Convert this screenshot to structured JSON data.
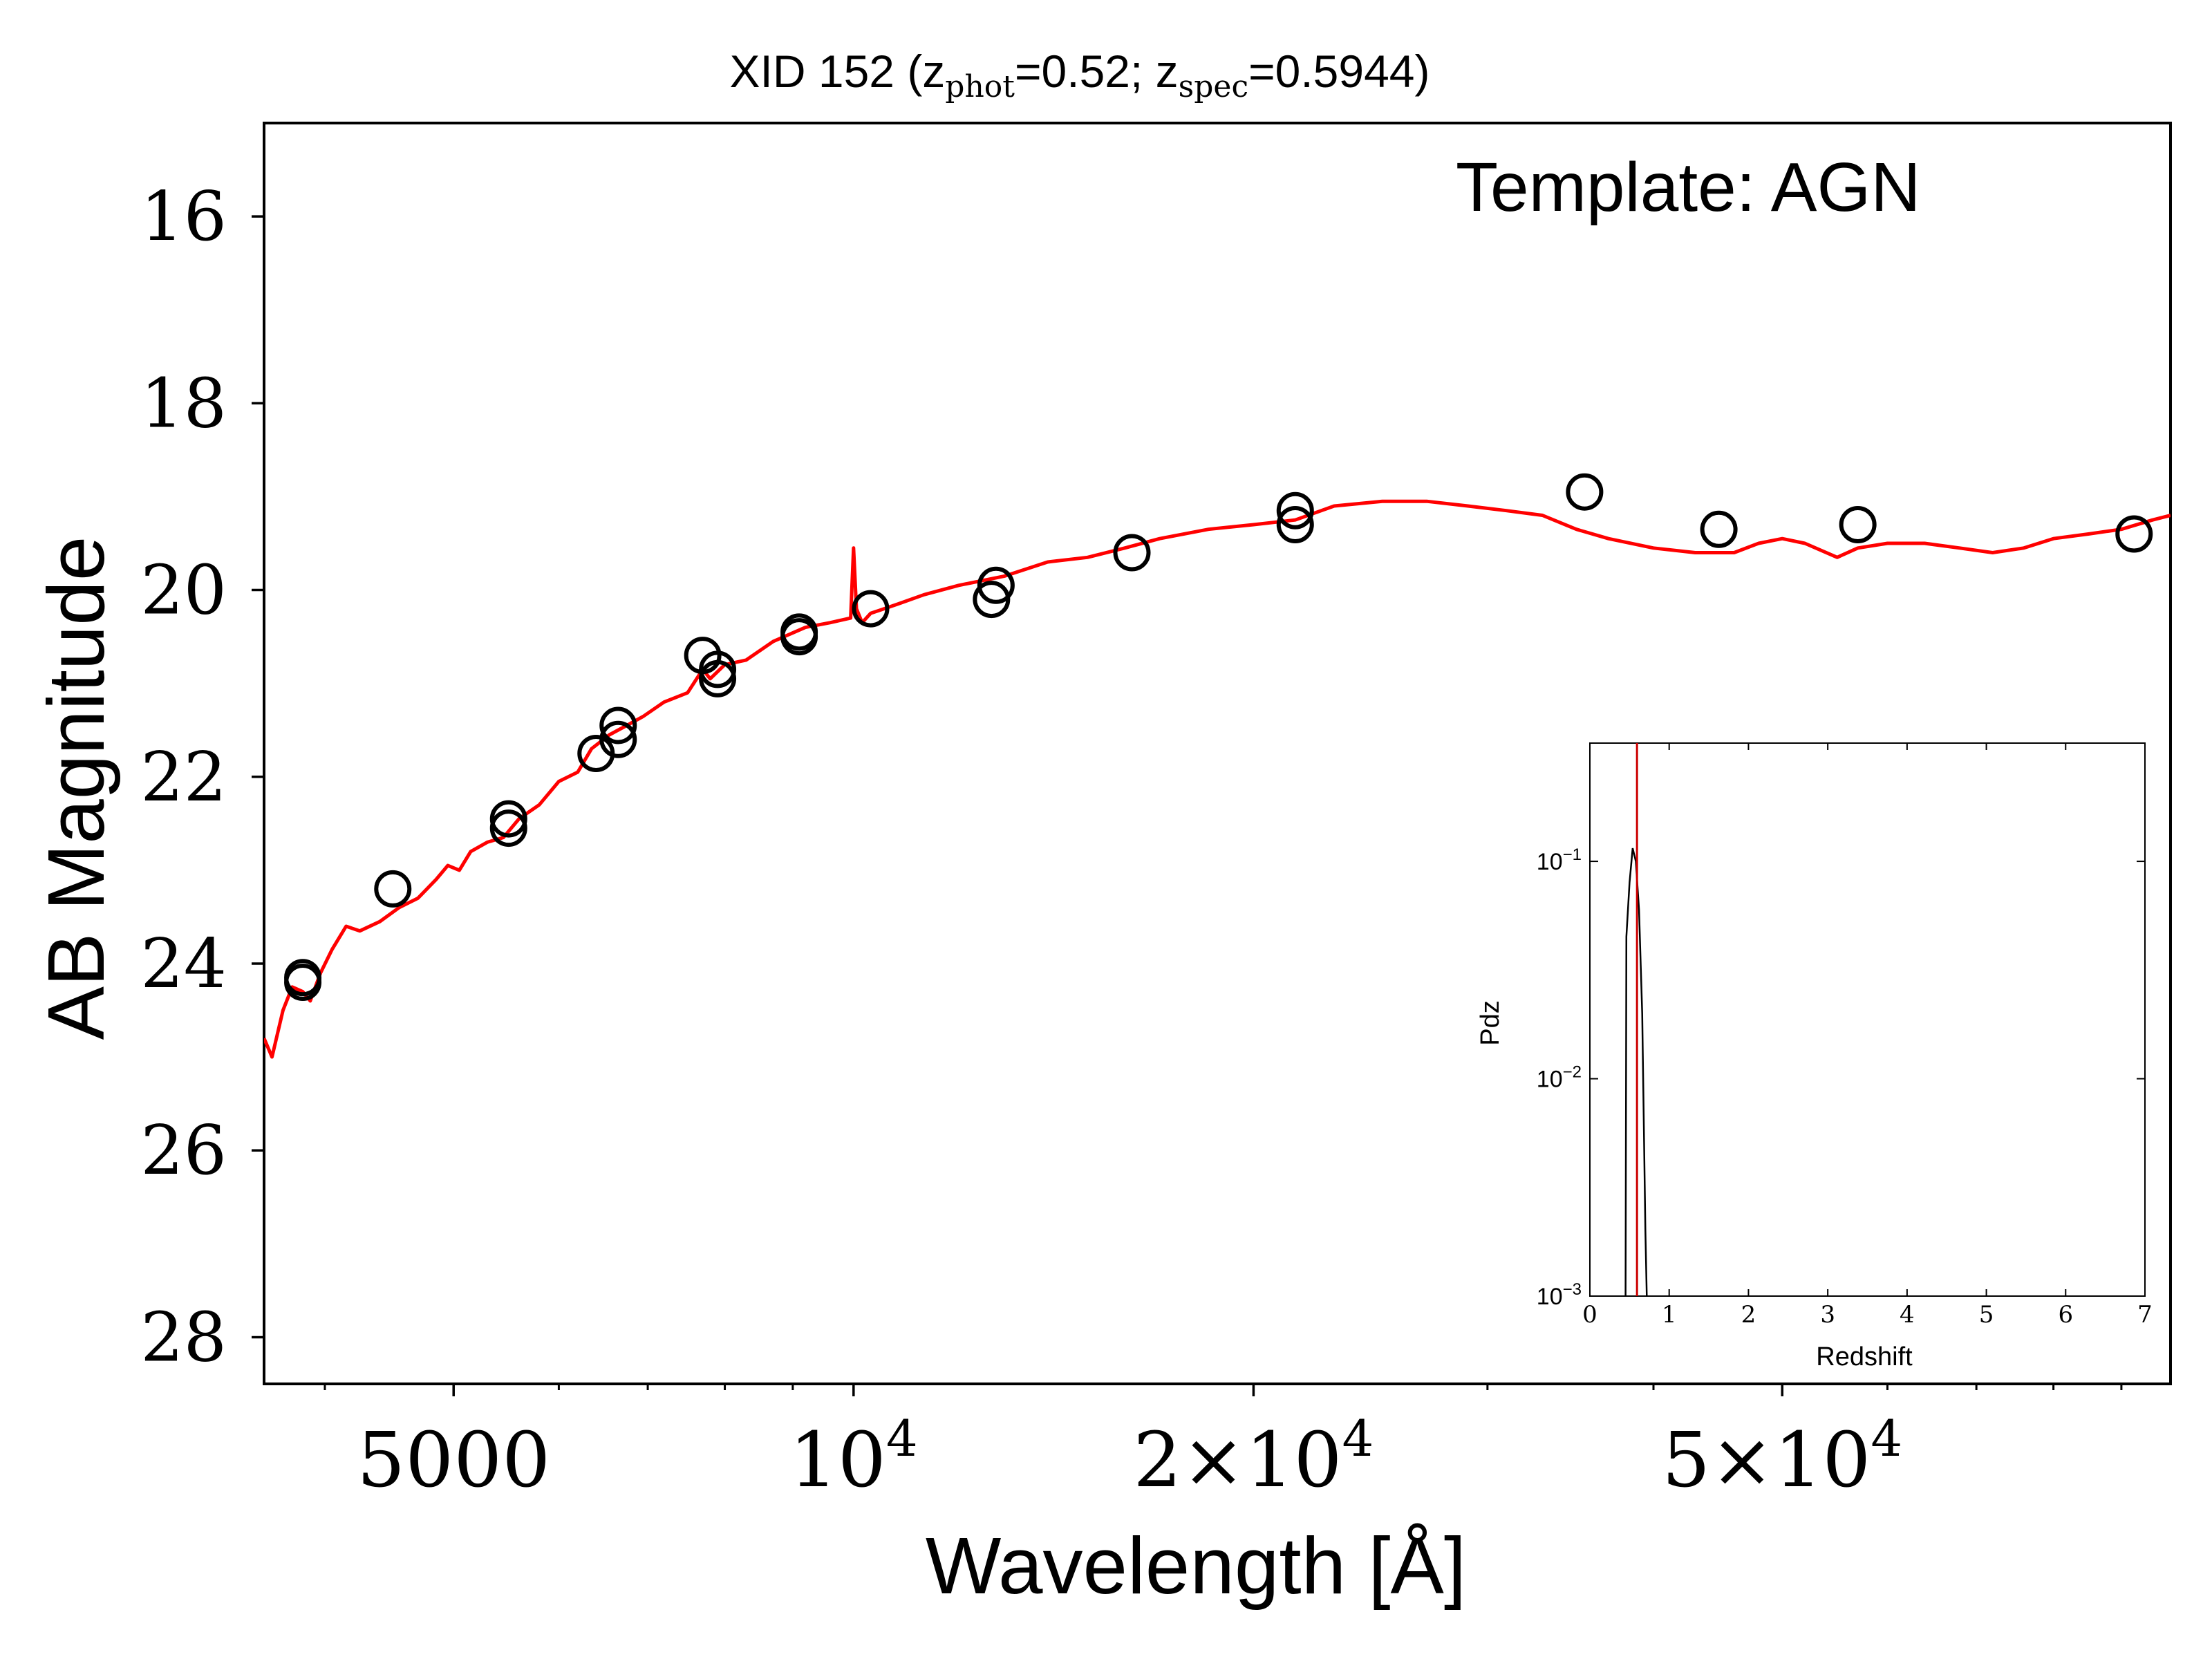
{
  "title": {
    "prefix": "XID 152 (z",
    "sub1": "phot",
    "mid": "=0.52; z",
    "sub2": "spec",
    "suffix": "=0.5944)"
  },
  "annotation": "Template: AGN",
  "colors": {
    "model": "#ff0000",
    "points": "#000000",
    "zspec_line": "#cc0000",
    "pdz": "#000000"
  },
  "chart_data": [
    {
      "type": "scatter",
      "title": "XID 152 (z_phot=0.52; z_spec=0.5944)",
      "xlabel": "Wavelength [Å]",
      "ylabel": "AB Magnitude",
      "xscale": "log",
      "xlim": [
        3600,
        98000
      ],
      "ylim": [
        28.5,
        15
      ],
      "y_inverted": true,
      "grid": false,
      "x_ticks": [
        {
          "value": 5000,
          "base": "5000",
          "exp": ""
        },
        {
          "value": 10000,
          "base": "10",
          "exp": "4"
        },
        {
          "value": 20000,
          "base": "2×10",
          "exp": "4"
        },
        {
          "value": 50000,
          "base": "5×10",
          "exp": "4"
        }
      ],
      "y_ticks": [
        16,
        18,
        20,
        22,
        24,
        26,
        28
      ],
      "annotation": "Template: AGN",
      "series": [
        {
          "kind": "points",
          "marker": "open-circle",
          "points": [
            [
              3850,
              24.15
            ],
            [
              3850,
              24.2
            ],
            [
              4500,
              23.2
            ],
            [
              5500,
              22.45
            ],
            [
              5500,
              22.55
            ],
            [
              6400,
              21.75
            ],
            [
              6650,
              21.45
            ],
            [
              6650,
              21.6
            ],
            [
              7700,
              20.7
            ],
            [
              7900,
              20.85
            ],
            [
              7900,
              20.95
            ],
            [
              9100,
              20.45
            ],
            [
              9100,
              20.5
            ],
            [
              10300,
              20.2
            ],
            [
              12700,
              20.1
            ],
            [
              12800,
              19.95
            ],
            [
              16200,
              19.6
            ],
            [
              21500,
              19.15
            ],
            [
              21500,
              19.3
            ],
            [
              35500,
              18.95
            ],
            [
              44800,
              19.35
            ],
            [
              57000,
              19.3
            ],
            [
              92000,
              19.4
            ]
          ]
        },
        {
          "kind": "line",
          "style": "solid",
          "points": [
            [
              3600,
              24.8
            ],
            [
              3650,
              25.0
            ],
            [
              3720,
              24.5
            ],
            [
              3780,
              24.25
            ],
            [
              3850,
              24.3
            ],
            [
              3900,
              24.4
            ],
            [
              3970,
              24.1
            ],
            [
              4050,
              23.85
            ],
            [
              4150,
              23.6
            ],
            [
              4250,
              23.65
            ],
            [
              4400,
              23.55
            ],
            [
              4550,
              23.4
            ],
            [
              4700,
              23.3
            ],
            [
              4850,
              23.1
            ],
            [
              4950,
              22.95
            ],
            [
              5050,
              23.0
            ],
            [
              5150,
              22.8
            ],
            [
              5300,
              22.7
            ],
            [
              5450,
              22.65
            ],
            [
              5600,
              22.45
            ],
            [
              5800,
              22.3
            ],
            [
              6000,
              22.05
            ],
            [
              6200,
              21.95
            ],
            [
              6350,
              21.7
            ],
            [
              6550,
              21.55
            ],
            [
              6750,
              21.45
            ],
            [
              6950,
              21.35
            ],
            [
              7200,
              21.2
            ],
            [
              7500,
              21.1
            ],
            [
              7700,
              20.85
            ],
            [
              7800,
              20.95
            ],
            [
              8000,
              20.8
            ],
            [
              8300,
              20.75
            ],
            [
              8700,
              20.55
            ],
            [
              9200,
              20.4
            ],
            [
              9600,
              20.35
            ],
            [
              9950,
              20.3
            ],
            [
              10000,
              19.55
            ],
            [
              10050,
              20.2
            ],
            [
              10150,
              20.35
            ],
            [
              10300,
              20.25
            ],
            [
              10800,
              20.15
            ],
            [
              11300,
              20.05
            ],
            [
              12000,
              19.95
            ],
            [
              13000,
              19.85
            ],
            [
              14000,
              19.7
            ],
            [
              15000,
              19.65
            ],
            [
              16000,
              19.55
            ],
            [
              17000,
              19.45
            ],
            [
              18500,
              19.35
            ],
            [
              20000,
              19.3
            ],
            [
              21500,
              19.25
            ],
            [
              23000,
              19.1
            ],
            [
              25000,
              19.05
            ],
            [
              27000,
              19.05
            ],
            [
              29000,
              19.1
            ],
            [
              31000,
              19.15
            ],
            [
              33000,
              19.2
            ],
            [
              35000,
              19.35
            ],
            [
              37000,
              19.45
            ],
            [
              40000,
              19.55
            ],
            [
              43000,
              19.6
            ],
            [
              46000,
              19.6
            ],
            [
              48000,
              19.5
            ],
            [
              50000,
              19.45
            ],
            [
              52000,
              19.5
            ],
            [
              55000,
              19.65
            ],
            [
              57000,
              19.55
            ],
            [
              60000,
              19.5
            ],
            [
              64000,
              19.5
            ],
            [
              68000,
              19.55
            ],
            [
              72000,
              19.6
            ],
            [
              76000,
              19.55
            ],
            [
              80000,
              19.45
            ],
            [
              85000,
              19.4
            ],
            [
              90000,
              19.35
            ],
            [
              95000,
              19.25
            ],
            [
              98000,
              19.2
            ]
          ]
        }
      ]
    },
    {
      "type": "line",
      "xlabel": "Redshift",
      "ylabel": "Pdz",
      "yscale": "log",
      "xlim": [
        0,
        7
      ],
      "ylim": [
        0.001,
        0.35
      ],
      "x_ticks": [
        0,
        1,
        2,
        3,
        4,
        5,
        6,
        7
      ],
      "y_ticks": [
        {
          "value": 0.1,
          "base": "10",
          "exp": "−1"
        },
        {
          "value": 0.01,
          "base": "10",
          "exp": "−2"
        },
        {
          "value": 0.001,
          "base": "10",
          "exp": "−3"
        }
      ],
      "z_spec": 0.5944,
      "series": [
        {
          "points": [
            [
              0.45,
              0.0009
            ],
            [
              0.46,
              0.045
            ],
            [
              0.5,
              0.08
            ],
            [
              0.54,
              0.115
            ],
            [
              0.58,
              0.1
            ],
            [
              0.62,
              0.06
            ],
            [
              0.66,
              0.02
            ],
            [
              0.7,
              0.002
            ],
            [
              0.72,
              0.0009
            ]
          ]
        }
      ]
    }
  ]
}
